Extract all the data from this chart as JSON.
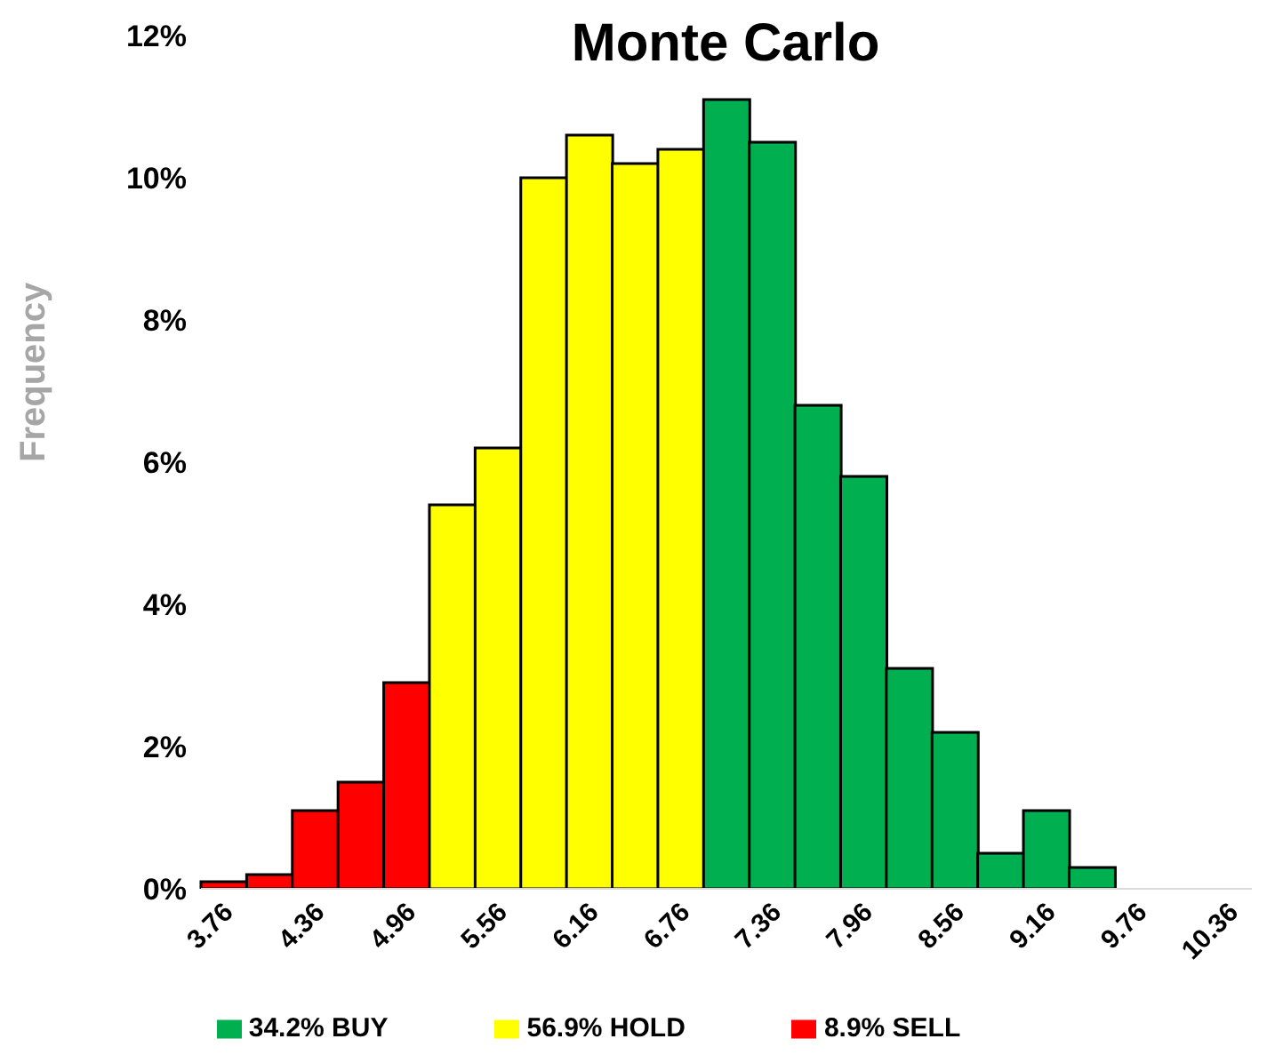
{
  "chart_data": {
    "type": "bar",
    "title": "Monte Carlo",
    "ylabel": "Frequency",
    "stacked": true,
    "legend": "bottom",
    "grid": false,
    "categories": [
      "3.76",
      null,
      "4.36",
      null,
      "4.96",
      null,
      "5.56",
      null,
      "6.16",
      null,
      "6.76",
      null,
      "7.36",
      null,
      "7.96",
      null,
      "8.56",
      null,
      "9.16",
      null,
      "9.76",
      null,
      "10.36"
    ],
    "series": [
      {
        "name": "8.9% SELL",
        "color": "#ff0000",
        "values": [
          0.1,
          0.2,
          1.1,
          1.5,
          2.9,
          null,
          null,
          null,
          null,
          null,
          null,
          null,
          null,
          null,
          null,
          null,
          null,
          null,
          null,
          null,
          null,
          null,
          null
        ]
      },
      {
        "name": "56.9% HOLD",
        "color": "#ffff00",
        "values": [
          null,
          null,
          null,
          null,
          null,
          5.4,
          6.2,
          10.0,
          10.6,
          10.2,
          10.4,
          null,
          null,
          null,
          null,
          null,
          null,
          null,
          null,
          null,
          null,
          null,
          null
        ]
      },
      {
        "name": "34.2% BUY",
        "color": "#00b050",
        "values": [
          null,
          null,
          null,
          null,
          null,
          null,
          null,
          null,
          null,
          null,
          null,
          11.1,
          10.5,
          6.8,
          5.8,
          3.1,
          2.2,
          0.5,
          1.1,
          0.3,
          null,
          null,
          null
        ]
      }
    ],
    "ylim": [
      0,
      12
    ],
    "yticks": [
      {
        "value": 0,
        "label": "0%"
      },
      {
        "value": 2,
        "label": "2%"
      },
      {
        "value": 4,
        "label": "4%"
      },
      {
        "value": 6,
        "label": "6%"
      },
      {
        "value": 8,
        "label": "8%"
      },
      {
        "value": 10,
        "label": "10%"
      },
      {
        "value": 12,
        "label": "12%"
      }
    ]
  }
}
